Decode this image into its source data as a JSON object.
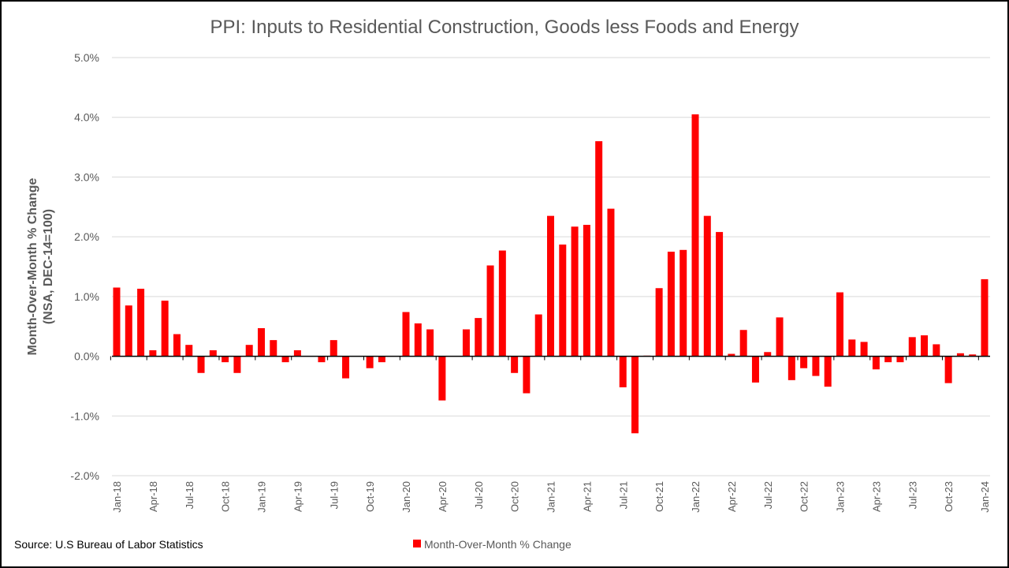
{
  "chart_data": {
    "type": "bar",
    "title": "PPI: Inputs to Residential Construction, Goods less Foods and Energy",
    "y_label": [
      "Month-Over-Month % Change",
      "(NSA, DEC-14=100)"
    ],
    "source": "Source: U.S Bureau of Labor Statistics",
    "categories": [
      "Jan-18",
      null,
      null,
      "Apr-18",
      null,
      null,
      "Jul-18",
      null,
      null,
      "Oct-18",
      null,
      null,
      "Jan-19",
      null,
      null,
      "Apr-19",
      null,
      null,
      "Jul-19",
      null,
      null,
      "Oct-19",
      null,
      null,
      "Jan-20",
      null,
      null,
      "Apr-20",
      null,
      null,
      "Jul-20",
      null,
      null,
      "Oct-20",
      null,
      null,
      "Jan-21",
      null,
      null,
      "Apr-21",
      null,
      null,
      "Jul-21",
      null,
      null,
      "Oct-21",
      null,
      null,
      "Jan-22",
      null,
      null,
      "Apr-22",
      null,
      null,
      "Jul-22",
      null,
      null,
      "Oct-22",
      null,
      null,
      "Jan-23",
      null,
      null,
      "Apr-23",
      null,
      null,
      "Jul-23",
      null,
      null,
      "Oct-23",
      null,
      null,
      "Jan-24"
    ],
    "series": [
      {
        "name": "Month-Over-Month % Change",
        "color": "#ff0000",
        "values": [
          1.15,
          0.85,
          1.13,
          0.1,
          0.93,
          0.37,
          0.19,
          -0.28,
          0.1,
          -0.1,
          -0.28,
          0.19,
          0.47,
          0.27,
          -0.1,
          0.1,
          0.0,
          -0.1,
          0.27,
          -0.37,
          0.0,
          -0.2,
          -0.1,
          0.0,
          0.74,
          0.55,
          0.45,
          -0.74,
          0.0,
          0.45,
          0.64,
          1.52,
          1.77,
          -0.28,
          -0.62,
          0.7,
          2.35,
          1.87,
          2.17,
          2.2,
          3.6,
          2.47,
          -0.52,
          -1.29,
          0.01,
          1.14,
          1.75,
          1.78,
          4.05,
          2.35,
          2.08,
          0.04,
          0.44,
          -0.44,
          0.07,
          0.65,
          -0.4,
          -0.2,
          -0.33,
          -0.51,
          1.07,
          0.28,
          0.24,
          -0.22,
          -0.1,
          -0.1,
          0.32,
          0.35,
          0.2,
          -0.45,
          0.05,
          0.03,
          1.29
        ]
      }
    ],
    "ylim": [
      -2,
      5
    ],
    "yticks": [
      {
        "value": -2,
        "label": "-2.0%"
      },
      {
        "value": -1,
        "label": "-1.0%"
      },
      {
        "value": 0,
        "label": "0.0%"
      },
      {
        "value": 1,
        "label": "1.0%"
      },
      {
        "value": 2,
        "label": "2.0%"
      },
      {
        "value": 3,
        "label": "3.0%"
      },
      {
        "value": 4,
        "label": "4.0%"
      },
      {
        "value": 5,
        "label": "5.0%"
      }
    ],
    "grid": true,
    "legend": "bottom"
  }
}
